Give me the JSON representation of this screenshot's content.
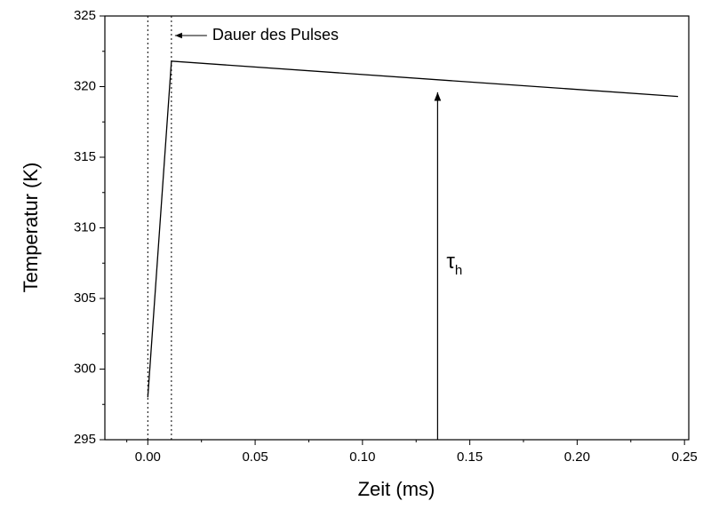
{
  "chart_data": {
    "type": "line",
    "xlabel": "Zeit (ms)",
    "ylabel": "Temperatur (K)",
    "x": [
      0,
      0.011,
      0.247
    ],
    "series": [
      {
        "color": "#000000",
        "values": [
          298,
          321.8,
          319.3
        ]
      }
    ],
    "xlim": [
      -0.02,
      0.252
    ],
    "ylim": [
      295,
      325
    ],
    "xticks": [
      {
        "value": 0,
        "label": "0.00"
      },
      0.05,
      {
        "value": 0.1,
        "label": "0.10"
      },
      0.15,
      {
        "value": 0.2,
        "label": "0.20"
      },
      0.25
    ],
    "yticks": [
      295,
      300,
      305,
      310,
      315,
      320,
      325
    ],
    "vlines": [
      0,
      0.011
    ],
    "pulse_label": "Dauer des Pulses",
    "arrow": {
      "x": 0.135,
      "y": [
        295,
        319.6
      ],
      "label": "τ",
      "subscript": "h"
    }
  }
}
